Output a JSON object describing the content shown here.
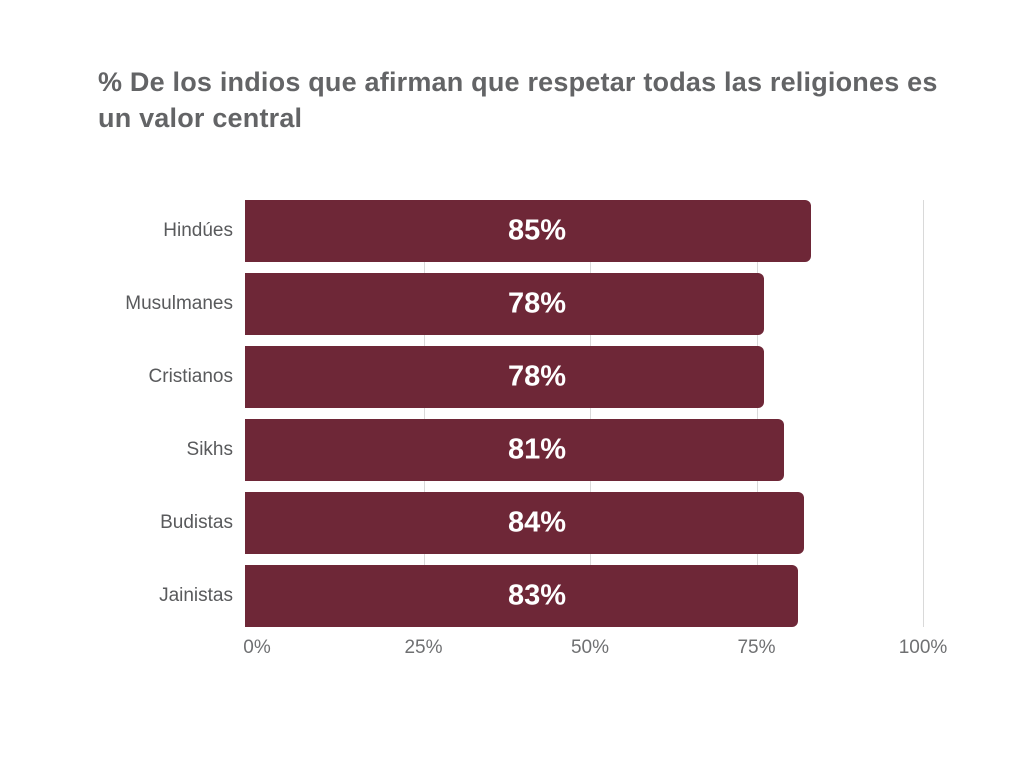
{
  "chart_data": {
    "type": "bar",
    "orientation": "horizontal",
    "title": "% De los indios que afirman que respetar todas las religiones es un valor central",
    "categories": [
      "Hindúes",
      "Musulmanes",
      "Cristianos",
      "Sikhs",
      "Budistas",
      "Jainistas"
    ],
    "values": [
      85,
      78,
      78,
      81,
      84,
      83
    ],
    "value_labels": [
      "85%",
      "78%",
      "78%",
      "81%",
      "84%",
      "83%"
    ],
    "xlabel": "",
    "ylabel": "",
    "xlim": [
      0,
      100
    ],
    "x_ticks": [
      "0%",
      "25%",
      "50%",
      "75%",
      "100%"
    ],
    "x_tick_values": [
      0,
      25,
      50,
      75,
      100
    ],
    "grid": "vertical gridlines at x ticks, drawn behind bars",
    "legend": "none",
    "colors": {
      "bar": "#6e2737",
      "value_label": "#ffffff",
      "title": "#636466",
      "category_label": "#595a5c",
      "tick_label": "#6f7072",
      "gridline": "#d9d9d9",
      "background": "#ffffff"
    }
  }
}
